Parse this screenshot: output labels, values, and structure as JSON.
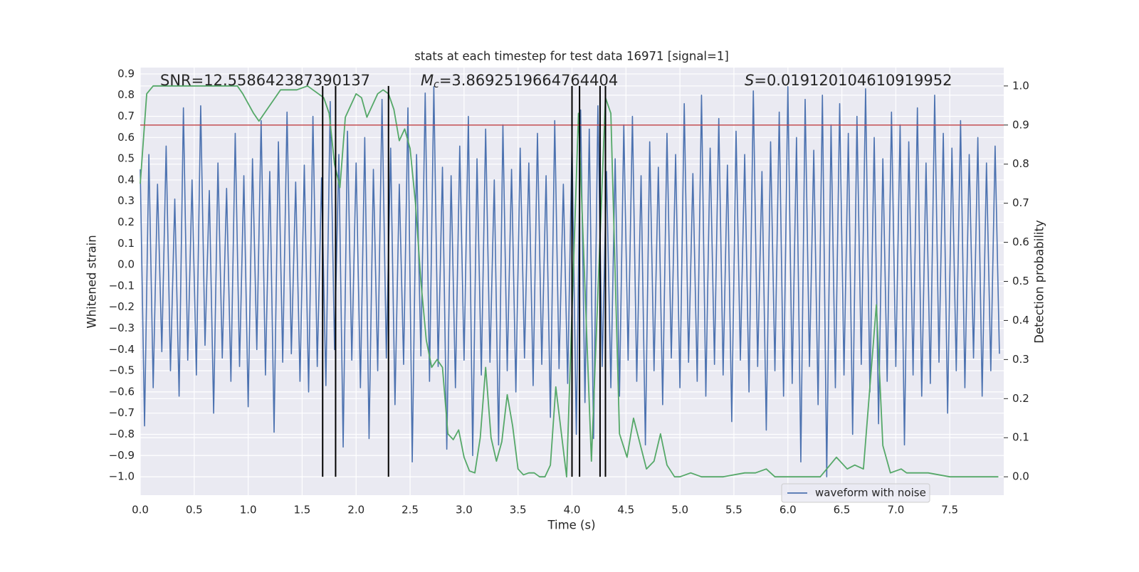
{
  "chart_data": {
    "type": "line",
    "title": "stats at each timestep for test data 16971 [signal=1]",
    "xlabel": "Time (s)",
    "ylabel": "Whitened strain",
    "y2label": "Detection probability",
    "xlim": [
      0,
      8
    ],
    "ylim": [
      -1.087,
      0.93
    ],
    "y2lim": [
      -0.047,
      1.047
    ],
    "xticks": [
      {
        "value": 0,
        "label": "0.0"
      },
      0.5,
      {
        "value": 1,
        "label": "1.0"
      },
      1.5,
      {
        "value": 2,
        "label": "2.0"
      },
      2.5,
      {
        "value": 3,
        "label": "3.0"
      },
      3.5,
      {
        "value": 4,
        "label": "4.0"
      },
      4.5,
      {
        "value": 5,
        "label": "5.0"
      },
      5.5,
      {
        "value": 6,
        "label": "6.0"
      },
      6.5,
      {
        "value": 7,
        "label": "7.0"
      },
      7.5
    ],
    "yticks": [
      0.9,
      0.8,
      0.7,
      0.6,
      0.5,
      0.4,
      0.3,
      0.2,
      0.1,
      {
        "value": 0,
        "label": "0.0"
      },
      {
        "value": -0.1,
        "label": "−0.1"
      },
      {
        "value": -0.2,
        "label": "−0.2"
      },
      {
        "value": -0.3,
        "label": "−0.3"
      },
      {
        "value": -0.4,
        "label": "−0.4"
      },
      {
        "value": -0.5,
        "label": "−0.5"
      },
      {
        "value": -0.6,
        "label": "−0.6"
      },
      {
        "value": -0.7,
        "label": "−0.7"
      },
      {
        "value": -0.8,
        "label": "−0.8"
      },
      {
        "value": -0.9,
        "label": "−0.9"
      },
      {
        "value": -1,
        "label": "−1.0"
      }
    ],
    "y2ticks": [
      {
        "value": 0,
        "label": "0.0"
      },
      0.1,
      0.2,
      0.3,
      0.4,
      0.5,
      0.6,
      0.7,
      0.8,
      0.9,
      {
        "value": 1,
        "label": "1.0"
      }
    ],
    "grid": true,
    "legend": "best",
    "annotations": [
      {
        "text": "SNR=12.558642387390137"
      },
      {
        "symbol": "M",
        "subscript": "c",
        "text": "=3.8692519664764404"
      },
      {
        "symbol": "S",
        "text": "=0.019120104610919952"
      }
    ],
    "hline": {
      "value": 0.9,
      "axis": "y2",
      "color": "#c44e52"
    },
    "vlines": {
      "x": [
        1.69,
        1.81,
        2.3,
        4.0,
        4.07,
        4.26,
        4.31
      ],
      "ymin": 0,
      "ymax": 1,
      "axis": "y2",
      "color": "#000000"
    },
    "series": [
      {
        "name": "waveform with noise",
        "color": "#4c72b0",
        "axis": "y",
        "x": [
          0,
          0.04,
          0.08,
          0.12,
          0.16,
          0.2,
          0.24,
          0.28,
          0.32,
          0.36,
          0.4,
          0.44,
          0.48,
          0.52,
          0.56,
          0.6,
          0.64,
          0.68,
          0.72,
          0.76,
          0.8,
          0.84,
          0.88,
          0.92,
          0.96,
          1,
          1.04,
          1.08,
          1.12,
          1.16,
          1.2,
          1.24,
          1.28,
          1.32,
          1.36,
          1.4,
          1.44,
          1.48,
          1.52,
          1.56,
          1.6,
          1.64,
          1.68,
          1.72,
          1.76,
          1.8,
          1.84,
          1.88,
          1.92,
          1.96,
          2,
          2.04,
          2.08,
          2.12,
          2.16,
          2.2,
          2.24,
          2.28,
          2.32,
          2.36,
          2.4,
          2.44,
          2.48,
          2.52,
          2.56,
          2.6,
          2.64,
          2.68,
          2.72,
          2.76,
          2.8,
          2.84,
          2.88,
          2.92,
          2.96,
          3,
          3.04,
          3.08,
          3.12,
          3.16,
          3.2,
          3.24,
          3.28,
          3.32,
          3.36,
          3.4,
          3.44,
          3.48,
          3.52,
          3.56,
          3.6,
          3.64,
          3.68,
          3.72,
          3.76,
          3.8,
          3.84,
          3.88,
          3.92,
          3.96,
          4,
          4.04,
          4.08,
          4.12,
          4.16,
          4.2,
          4.24,
          4.28,
          4.32,
          4.36,
          4.4,
          4.44,
          4.48,
          4.52,
          4.56,
          4.6,
          4.64,
          4.68,
          4.72,
          4.76,
          4.8,
          4.84,
          4.88,
          4.92,
          4.96,
          5,
          5.04,
          5.08,
          5.12,
          5.16,
          5.2,
          5.24,
          5.28,
          5.32,
          5.36,
          5.4,
          5.44,
          5.48,
          5.52,
          5.56,
          5.6,
          5.64,
          5.68,
          5.72,
          5.76,
          5.8,
          5.84,
          5.88,
          5.92,
          5.96,
          6,
          6.04,
          6.08,
          6.12,
          6.16,
          6.2,
          6.24,
          6.28,
          6.32,
          6.36,
          6.4,
          6.44,
          6.48,
          6.52,
          6.56,
          6.6,
          6.64,
          6.68,
          6.72,
          6.76,
          6.8,
          6.84,
          6.88,
          6.92,
          6.96,
          7,
          7.04,
          7.08,
          7.12,
          7.16,
          7.2,
          7.24,
          7.28,
          7.32,
          7.36,
          7.4,
          7.44,
          7.48,
          7.52,
          7.56,
          7.6,
          7.64,
          7.68,
          7.72,
          7.76,
          7.8,
          7.84,
          7.88,
          7.92,
          7.96
        ],
        "values": [
          0.45,
          -0.76,
          0.52,
          -0.58,
          0.38,
          -0.41,
          0.56,
          -0.5,
          0.31,
          -0.62,
          0.74,
          -0.45,
          0.4,
          -0.52,
          0.75,
          -0.38,
          0.35,
          -0.7,
          0.48,
          -0.44,
          0.36,
          -0.55,
          0.62,
          -0.48,
          0.42,
          -0.67,
          0.5,
          -0.4,
          0.68,
          -0.52,
          0.44,
          -0.79,
          0.58,
          -0.46,
          0.72,
          -0.42,
          0.39,
          -0.55,
          0.47,
          -0.6,
          0.7,
          -0.48,
          0.41,
          -0.57,
          0.77,
          -0.4,
          0.52,
          -0.86,
          0.63,
          -0.45,
          0.48,
          -0.58,
          0.6,
          -0.82,
          0.45,
          -0.5,
          0.78,
          -0.44,
          0.55,
          -0.66,
          0.38,
          -0.47,
          0.74,
          -0.93,
          0.52,
          -0.43,
          0.81,
          -0.55,
          0.84,
          -0.48,
          0.46,
          -0.87,
          0.42,
          -0.58,
          0.56,
          -0.45,
          0.7,
          -0.9,
          0.5,
          -0.52,
          0.64,
          -0.46,
          0.4,
          -0.85,
          0.66,
          -0.5,
          0.45,
          -0.6,
          0.55,
          -0.44,
          0.48,
          -0.57,
          0.62,
          -0.47,
          0.42,
          -0.72,
          0.68,
          -0.49,
          0.38,
          -0.56,
          0.58,
          -0.8,
          0.73,
          -0.65,
          0.64,
          -0.82,
          0.75,
          -0.48,
          0.44,
          -0.58,
          0.5,
          -0.62,
          0.66,
          -0.45,
          0.7,
          -0.55,
          0.42,
          -0.85,
          0.58,
          -0.5,
          0.46,
          -0.66,
          0.62,
          -0.44,
          0.52,
          -0.58,
          0.76,
          -0.46,
          0.43,
          -0.55,
          0.8,
          -0.62,
          0.55,
          -0.47,
          0.69,
          -0.52,
          0.47,
          -0.74,
          0.63,
          -0.45,
          0.52,
          -0.6,
          0.82,
          -0.48,
          0.44,
          -0.78,
          0.58,
          -0.5,
          0.72,
          -0.62,
          0.84,
          -0.56,
          0.6,
          -0.93,
          0.78,
          -0.48,
          0.54,
          -0.66,
          0.8,
          -1.0,
          0.66,
          -0.58,
          0.76,
          -0.52,
          0.62,
          -0.8,
          0.7,
          -0.47,
          0.83,
          -0.6,
          0.6,
          -0.75,
          0.5,
          -0.55,
          0.72,
          -0.48,
          0.66,
          -0.85,
          0.58,
          -0.52,
          0.74,
          -0.62,
          0.48,
          -0.56,
          0.8,
          -0.46,
          0.62,
          -0.7,
          0.55,
          -0.5,
          0.68,
          -0.58,
          0.52,
          -0.44,
          0.6,
          -0.62,
          0.48,
          -0.5,
          0.56,
          -0.42
        ]
      },
      {
        "color": "#55a868",
        "axis": "y2",
        "x": [
          0,
          0.06,
          0.12,
          0.5,
          0.9,
          0.95,
          1.05,
          1.1,
          1.2,
          1.3,
          1.4,
          1.45,
          1.55,
          1.6,
          1.7,
          1.75,
          1.8,
          1.85,
          1.9,
          2.0,
          2.05,
          2.1,
          2.2,
          2.25,
          2.3,
          2.35,
          2.4,
          2.45,
          2.5,
          2.55,
          2.6,
          2.65,
          2.7,
          2.75,
          2.8,
          2.85,
          2.9,
          2.95,
          3.0,
          3.05,
          3.1,
          3.15,
          3.2,
          3.25,
          3.3,
          3.35,
          3.4,
          3.45,
          3.5,
          3.55,
          3.6,
          3.65,
          3.7,
          3.75,
          3.8,
          3.85,
          3.95,
          4.06,
          4.18,
          4.31,
          4.36,
          4.44,
          4.51,
          4.57,
          4.69,
          4.76,
          4.82,
          4.88,
          4.95,
          5.0,
          5.1,
          5.2,
          5.4,
          5.6,
          5.7,
          5.8,
          5.88,
          6.0,
          6.2,
          6.3,
          6.45,
          6.55,
          6.62,
          6.7,
          6.82,
          6.88,
          6.95,
          7.05,
          7.1,
          7.2,
          7.3,
          7.5,
          7.7,
          7.95
        ],
        "values": [
          0.75,
          0.98,
          1.0,
          1.0,
          1.0,
          0.98,
          0.93,
          0.91,
          0.95,
          0.99,
          0.99,
          0.99,
          1.0,
          0.99,
          0.97,
          0.93,
          0.8,
          0.74,
          0.92,
          0.98,
          0.97,
          0.92,
          0.98,
          0.99,
          0.98,
          0.94,
          0.86,
          0.89,
          0.84,
          0.7,
          0.5,
          0.35,
          0.28,
          0.3,
          0.28,
          0.11,
          0.095,
          0.12,
          0.05,
          0.015,
          0.01,
          0.1,
          0.28,
          0.1,
          0.04,
          0.09,
          0.21,
          0.13,
          0.02,
          0.005,
          0.01,
          0.01,
          0.0,
          0.0,
          0.03,
          0.23,
          0.0,
          0.93,
          0.04,
          0.97,
          0.93,
          0.11,
          0.05,
          0.15,
          0.02,
          0.04,
          0.11,
          0.03,
          0.0,
          0.0,
          0.01,
          0.0,
          0.0,
          0.01,
          0.01,
          0.02,
          0.0,
          0.0,
          0.0,
          0.0,
          0.05,
          0.02,
          0.03,
          0.02,
          0.44,
          0.08,
          0.01,
          0.02,
          0.01,
          0.01,
          0.01,
          0.0,
          0.0,
          0.0
        ]
      }
    ]
  }
}
